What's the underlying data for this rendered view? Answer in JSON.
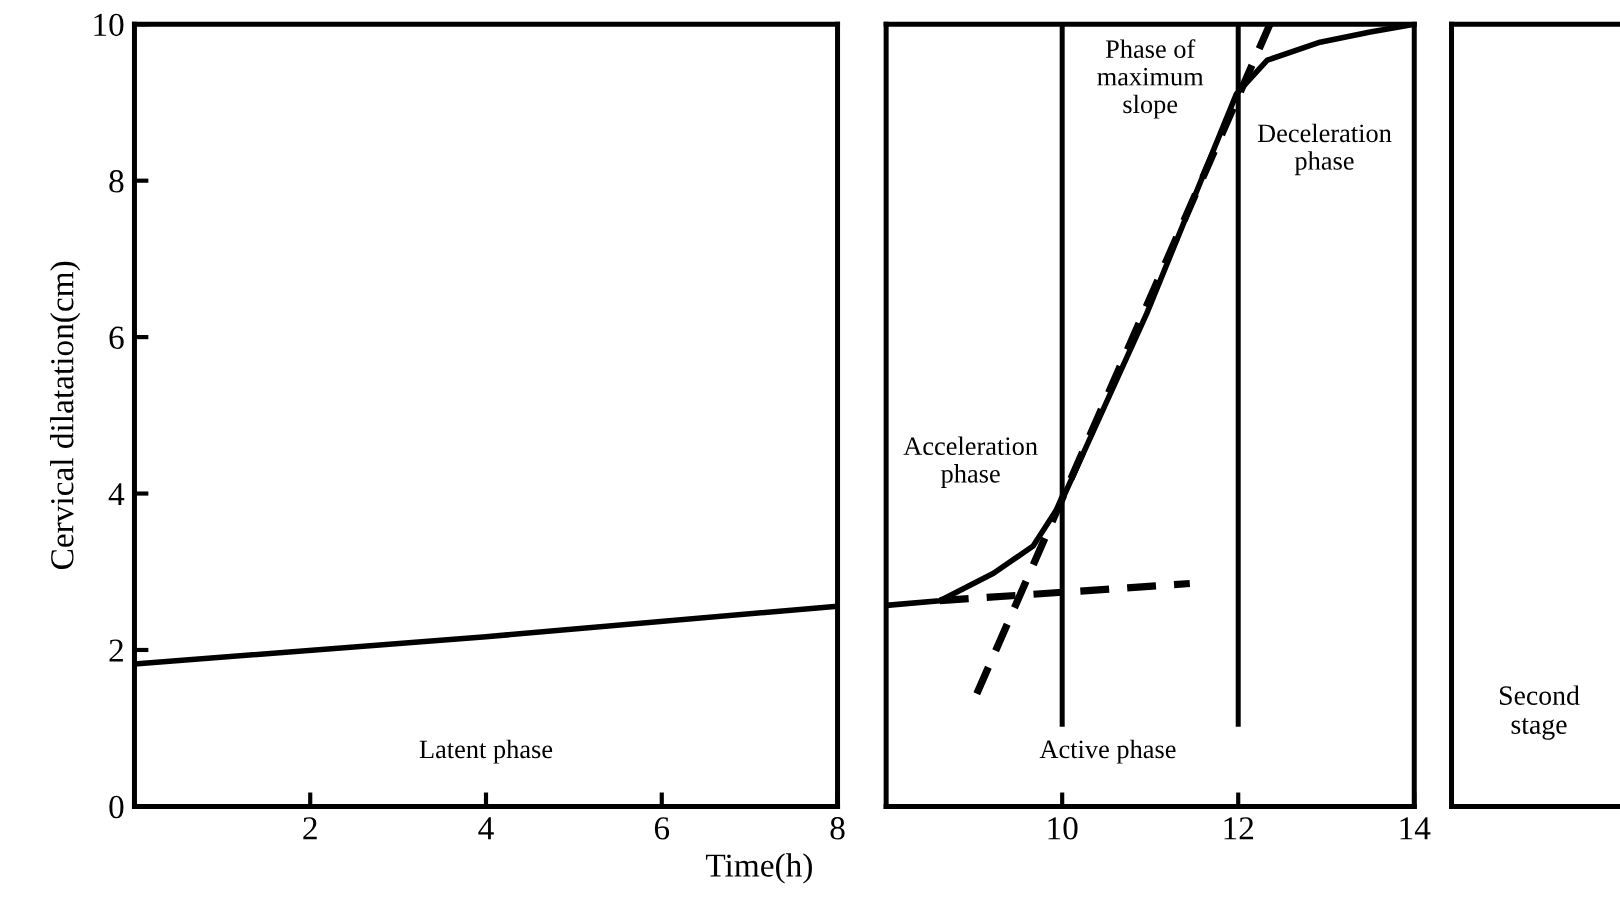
{
  "chart_data": [
    {
      "type": "line",
      "ylabel": "Cervical dilatation(cm)",
      "xlim": [
        0,
        8
      ],
      "ylim": [
        0,
        10
      ],
      "xticks": [
        2,
        4,
        6,
        8
      ],
      "yticks": [
        0,
        2,
        4,
        6,
        8,
        10
      ],
      "grid": false,
      "legend": false,
      "series": [
        {
          "color": "#000000",
          "x": [
            0,
            4,
            8
          ],
          "values": [
            1.82,
            2.17,
            2.56
          ],
          "line_style": "solid"
        }
      ],
      "annotations": [
        "Latent phase"
      ]
    },
    {
      "type": "line",
      "xlabel": "Time(h)",
      "xlim": [
        8,
        14
      ],
      "ylim": [
        0,
        10
      ],
      "xticks": [
        10,
        12,
        14
      ],
      "tick_labels": "x",
      "grid": false,
      "legend": false,
      "series": [
        {
          "color": "#000000",
          "x": [
            8.0,
            8.61,
            9.22,
            9.67,
            9.98,
            10.96,
            11.98,
            12.33,
            12.93,
            13.5,
            14.0
          ],
          "values": [
            2.57,
            2.63,
            2.98,
            3.33,
            3.87,
            6.3,
            9.11,
            9.54,
            9.77,
            9.9,
            10.0
          ],
          "line_style": "solid"
        },
        {
          "color": "#000000",
          "x": [
            8.61,
            11.45
          ],
          "values": [
            2.63,
            2.85
          ],
          "line_style": "dashed"
        },
        {
          "color": "#000000",
          "x": [
            9.03,
            12.36
          ],
          "values": [
            1.44,
            10.0
          ],
          "line_style": "dashed"
        }
      ],
      "ref_lines": [
        {
          "axis": "x",
          "value": 10,
          "color": "#000000",
          "line_style": "solid"
        },
        {
          "axis": "x",
          "value": 12,
          "color": "#000000",
          "line_style": "solid"
        }
      ],
      "annotations": [
        "Acceleration\nphase",
        "Phase of\nmaximum\nslope",
        "Deceleration\nphase",
        "Active phase"
      ]
    },
    {
      "type": "other",
      "annotations": [
        "Second\nstage"
      ]
    }
  ]
}
